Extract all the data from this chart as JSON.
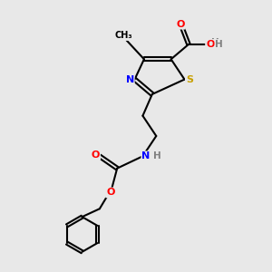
{
  "background_color": "#e8e8e8",
  "bond_color": "#000000",
  "atom_colors": {
    "O": "#ff0000",
    "N": "#0000ff",
    "S": "#c8a000",
    "C": "#000000",
    "H": "#808080"
  }
}
